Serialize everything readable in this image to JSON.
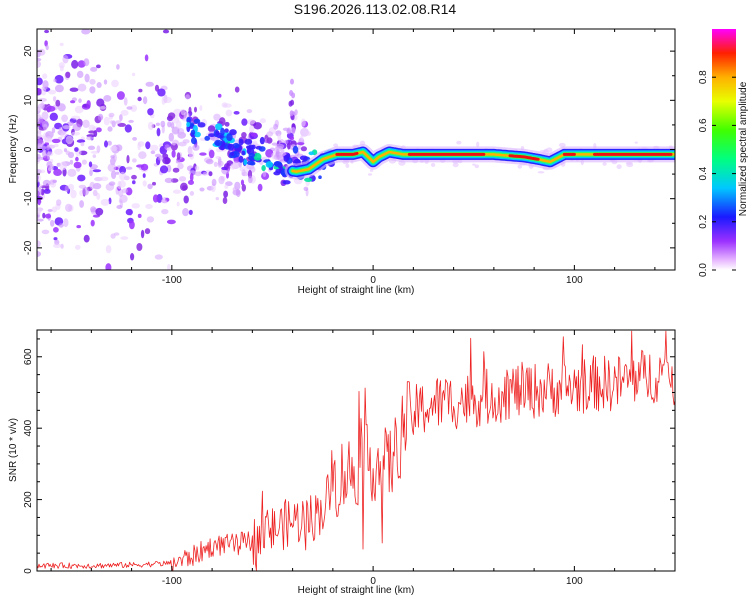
{
  "title": "S196.2026.113.02.08.R14",
  "chart_data": [
    {
      "type": "heatmap",
      "title": "S196.2026.113.02.08.R14",
      "xlabel": "Height of straight line (km)",
      "ylabel": "Frequency (Hz)",
      "xlim": [
        -167,
        150
      ],
      "ylim": [
        -24.5,
        24.5
      ],
      "xticks": [
        -100,
        0,
        100
      ],
      "yticks": [
        -20,
        -10,
        0,
        10,
        20
      ],
      "colorbar": {
        "label": "Normalized spectral amplitude",
        "range": [
          0.0,
          1.0
        ],
        "ticks": [
          "0.0",
          "0.2",
          "0.4",
          "0.6",
          "0.8"
        ]
      },
      "ridge": {
        "x": [
          -85,
          -75,
          -65,
          -55,
          -45,
          -38,
          -32,
          -25,
          -18,
          -10,
          -5,
          0,
          3,
          8,
          15,
          25,
          40,
          60,
          75,
          82,
          88,
          95,
          110,
          130,
          150
        ],
        "freq": [
          4,
          2,
          0,
          -2,
          -4,
          -4.5,
          -4,
          -2,
          -1,
          -1,
          -0.5,
          -2.5,
          -1.5,
          -0.5,
          -1,
          -1,
          -1,
          -1,
          -1.5,
          -2,
          -2.5,
          -1,
          -1,
          -1,
          -1
        ]
      }
    },
    {
      "type": "line",
      "xlabel": "Height of straight line (km)",
      "ylabel": "SNR (10 * v/v)",
      "xlim": [
        -167,
        150
      ],
      "ylim": [
        0,
        675
      ],
      "xticks": [
        -100,
        0,
        100
      ],
      "yticks": [
        0,
        200,
        400,
        600
      ],
      "series": [
        {
          "name": "SNR",
          "color": "#ee2222",
          "x": [
            -167,
            -140,
            -120,
            -100,
            -90,
            -80,
            -70,
            -60,
            -50,
            -40,
            -30,
            -25,
            -20,
            -15,
            -10,
            -5,
            0,
            5,
            10,
            15,
            20,
            30,
            40,
            50,
            60,
            70,
            80,
            90,
            100,
            110,
            120,
            130,
            140,
            150
          ],
          "y": [
            15,
            15,
            17,
            22,
            40,
            70,
            75,
            85,
            115,
            140,
            150,
            175,
            240,
            270,
            280,
            300,
            305,
            290,
            310,
            410,
            440,
            470,
            475,
            480,
            490,
            505,
            505,
            510,
            515,
            525,
            525,
            540,
            550,
            555
          ]
        }
      ]
    }
  ]
}
